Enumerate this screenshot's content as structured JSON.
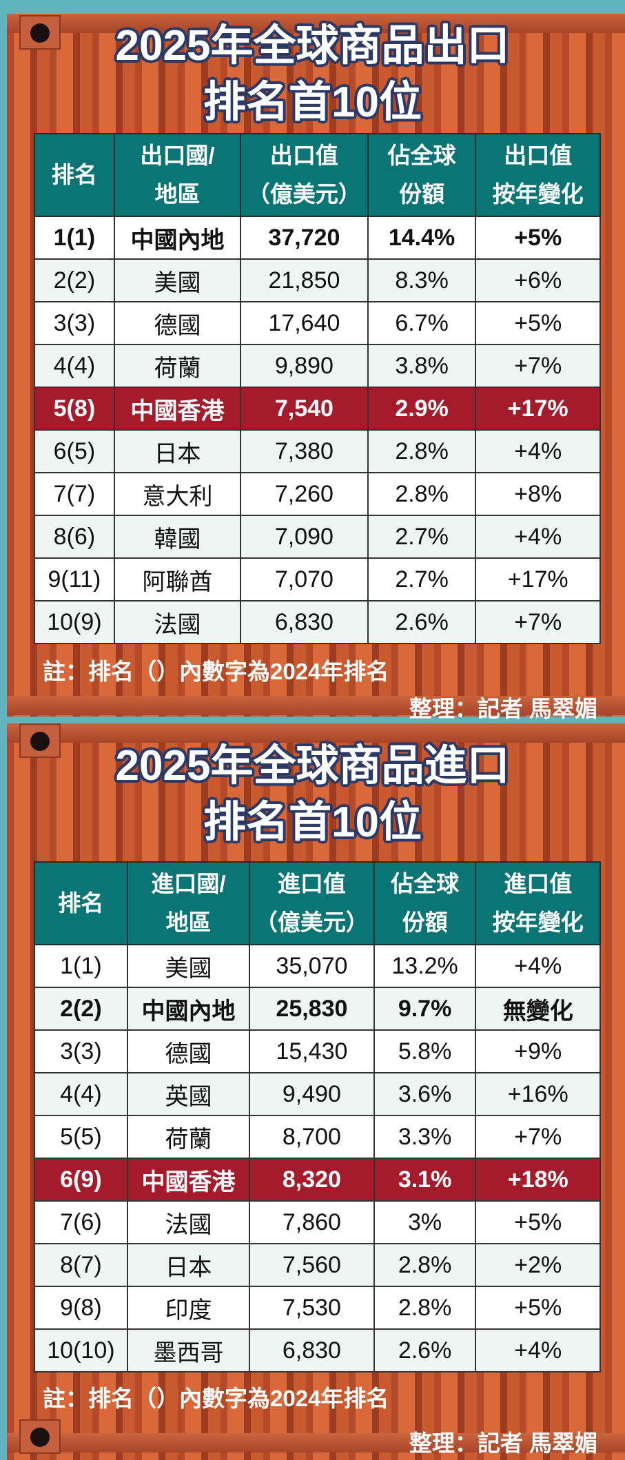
{
  "export": {
    "title_line1": "2025年全球商品出口",
    "title_line2": "排名首10位",
    "headers": [
      "排名",
      "出口國/\n地區",
      "出口值\n（億美元）",
      "佔全球\n份額",
      "出口值\n按年變化"
    ],
    "rows": [
      [
        "1(1)",
        "中國內地",
        "37,720",
        "14.4%",
        "+5%"
      ],
      [
        "2(2)",
        "美國",
        "21,850",
        "8.3%",
        "+6%"
      ],
      [
        "3(3)",
        "德國",
        "17,640",
        "6.7%",
        "+5%"
      ],
      [
        "4(4)",
        "荷蘭",
        "9,890",
        "3.8%",
        "+7%"
      ],
      [
        "5(8)",
        "中國香港",
        "7,540",
        "2.9%",
        "+17%"
      ],
      [
        "6(5)",
        "日本",
        "7,380",
        "2.8%",
        "+4%"
      ],
      [
        "7(7)",
        "意大利",
        "7,260",
        "2.8%",
        "+8%"
      ],
      [
        "8(6)",
        "韓國",
        "7,090",
        "2.7%",
        "+4%"
      ],
      [
        "9(11)",
        "阿聯酋",
        "7,070",
        "2.7%",
        "+17%"
      ],
      [
        "10(9)",
        "法國",
        "6,830",
        "2.6%",
        "+7%"
      ]
    ],
    "note": "註：排名（）內數字為2024年排名",
    "credit": "整理：記者 馬翠媚"
  },
  "import": {
    "title_line1": "2025年全球商品進口",
    "title_line2": "排名首10位",
    "headers": [
      "排名",
      "進口國/\n地區",
      "進口值\n（億美元）",
      "佔全球\n份額",
      "進口值\n按年變化"
    ],
    "rows": [
      [
        "1(1)",
        "美國",
        "35,070",
        "13.2%",
        "+4%"
      ],
      [
        "2(2)",
        "中國內地",
        "25,830",
        "9.7%",
        "無變化"
      ],
      [
        "3(3)",
        "德國",
        "15,430",
        "5.8%",
        "+9%"
      ],
      [
        "4(4)",
        "英國",
        "9,490",
        "3.6%",
        "+16%"
      ],
      [
        "5(5)",
        "荷蘭",
        "8,700",
        "3.3%",
        "+7%"
      ],
      [
        "6(9)",
        "中國香港",
        "8,320",
        "3.1%",
        "+18%"
      ],
      [
        "7(6)",
        "法國",
        "7,860",
        "3%",
        "+5%"
      ],
      [
        "8(7)",
        "日本",
        "7,560",
        "2.8%",
        "+2%"
      ],
      [
        "9(8)",
        "印度",
        "7,530",
        "2.8%",
        "+5%"
      ],
      [
        "10(10)",
        "墨西哥",
        "6,830",
        "2.6%",
        "+4%"
      ]
    ],
    "note": "註：排名（）內數字為2024年排名",
    "credit": "整理：記者 馬翠媚"
  },
  "colors": {
    "header": "#0b7576",
    "highlight": "#a61b2c",
    "container": "#c95a30",
    "title_outline": "#2d3a66"
  }
}
